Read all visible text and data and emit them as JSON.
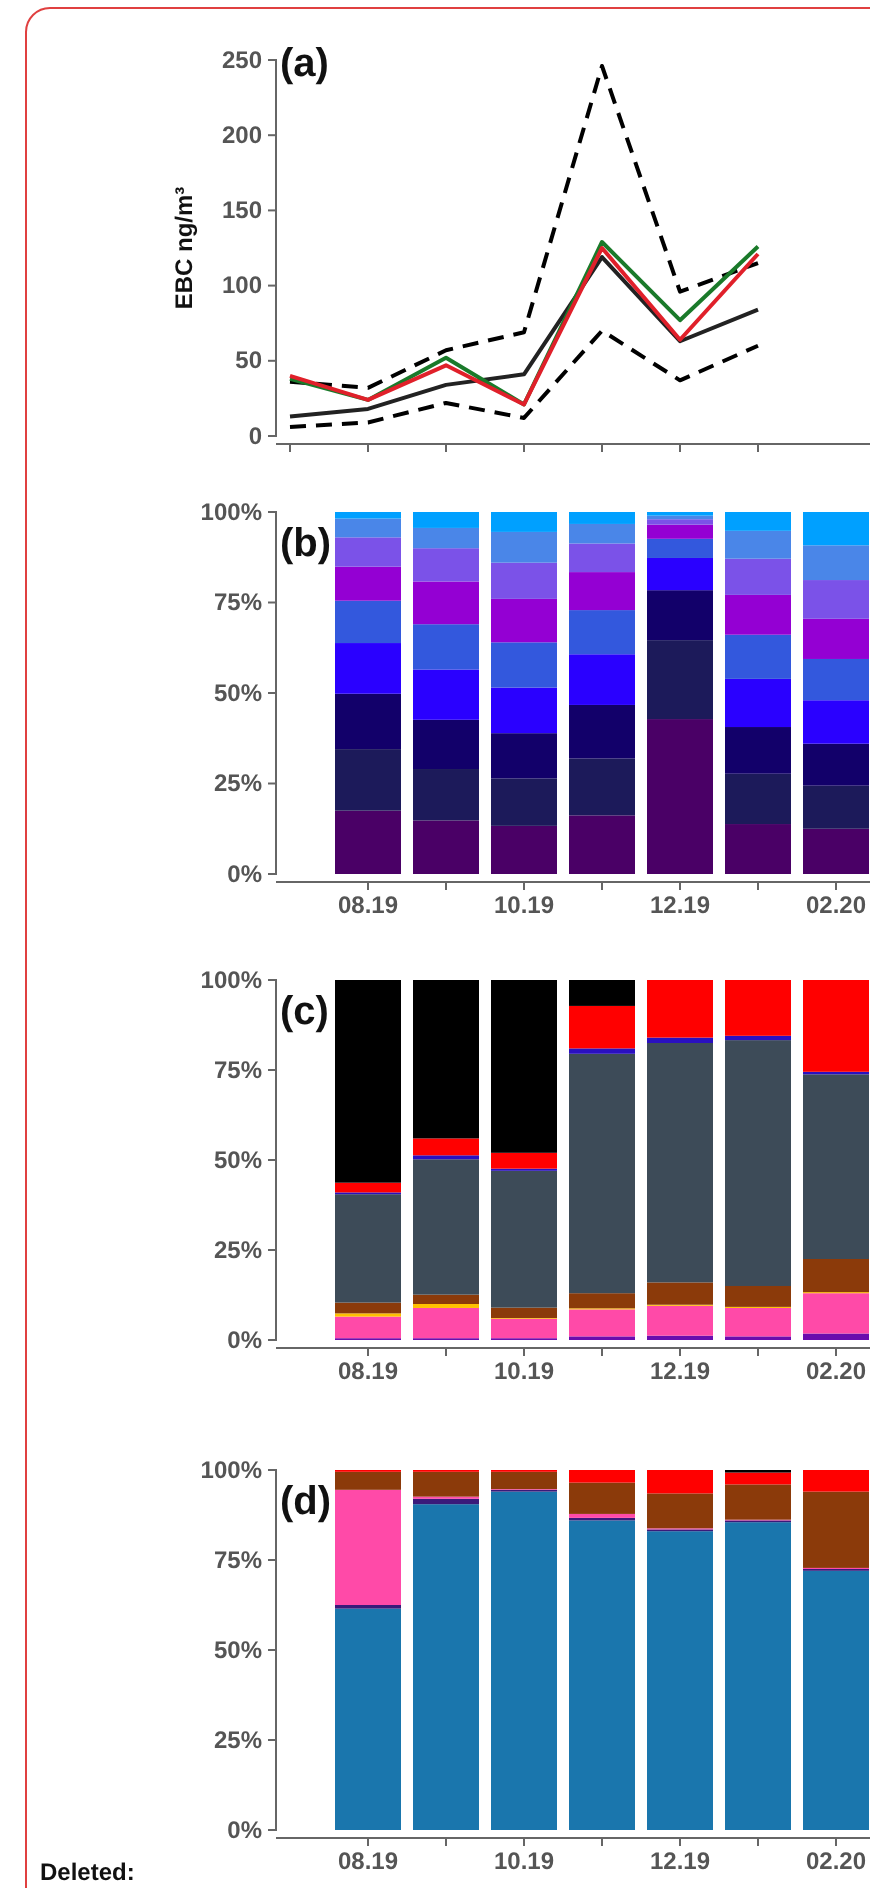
{
  "chart_data": [
    {
      "type": "line",
      "title": "(a)",
      "ylabel": "EBC ng/m³",
      "categories": [
        null,
        null,
        null,
        null,
        null,
        null,
        null
      ],
      "ylim": [
        0,
        250
      ],
      "yticks": [
        0,
        50,
        100,
        150,
        200,
        250
      ],
      "series": [
        {
          "color": "#000000",
          "line_style": "dashed",
          "values": [
            36,
            32,
            57,
            69,
            246,
            96,
            115
          ]
        },
        {
          "color": "#000000",
          "line_style": "dashed",
          "values": [
            6,
            9,
            22,
            12,
            70,
            37,
            60
          ]
        },
        {
          "color": "#222222",
          "line_style": "solid",
          "values": [
            13,
            18,
            34,
            41,
            119,
            63,
            84
          ]
        },
        {
          "color": "#1a7a2a",
          "line_style": "solid",
          "values": [
            38,
            24,
            52,
            21,
            129,
            77,
            126
          ]
        },
        {
          "color": "#e0202a",
          "line_style": "solid",
          "values": [
            40,
            24,
            47,
            21,
            125,
            64,
            121
          ]
        }
      ]
    },
    {
      "type": "bar",
      "stacked": true,
      "title": "(b)",
      "categories": [
        "08.19",
        null,
        "10.19",
        null,
        "12.19",
        null,
        "02.20"
      ],
      "ylim": [
        0,
        100
      ],
      "yticks": [
        {
          "value": 0,
          "label": "0%"
        },
        {
          "value": 25,
          "label": "25%"
        },
        {
          "value": 50,
          "label": "50%"
        },
        {
          "value": 75,
          "label": "75%"
        },
        {
          "value": 100,
          "label": "100%"
        }
      ],
      "series": [
        {
          "color": "#4a0066",
          "values": [
            17.5,
            14.8,
            13.3,
            16.2,
            42.8,
            13.8,
            12.5
          ]
        },
        {
          "color": "#1c1a5a",
          "values": [
            17,
            14.2,
            13.1,
            15.7,
            21.8,
            13.9,
            11.9
          ]
        },
        {
          "color": "#12006a",
          "values": [
            15.3,
            13.6,
            12.5,
            14.8,
            13.8,
            12.9,
            11.6
          ]
        },
        {
          "color": "#2a00ff",
          "values": [
            14,
            13.9,
            12.6,
            14,
            8.9,
            13.3,
            12
          ]
        },
        {
          "color": "#3358dd",
          "values": [
            11.7,
            12.5,
            12.5,
            12.2,
            5.3,
            12.2,
            11.4
          ]
        },
        {
          "color": "#9400d3",
          "values": [
            9.4,
            11.8,
            12,
            10.5,
            3.9,
            11,
            11.1
          ]
        },
        {
          "color": "#7b52e8",
          "values": [
            8.1,
            9.2,
            10,
            7.9,
            1.5,
            10,
            10.7
          ]
        },
        {
          "color": "#4a86e8",
          "values": [
            5.2,
            5.6,
            8.5,
            5.4,
            1,
            7.7,
            9.6
          ]
        },
        {
          "color": "#00a0ff",
          "values": [
            1.8,
            4.4,
            5.5,
            3.3,
            1,
            5.2,
            9.2
          ]
        }
      ]
    },
    {
      "type": "bar",
      "stacked": true,
      "title": "(c)",
      "categories": [
        "08.19",
        null,
        "10.19",
        null,
        "12.19",
        null,
        "02.20"
      ],
      "ylim": [
        0,
        100
      ],
      "yticks": [
        {
          "value": 0,
          "label": "0%"
        },
        {
          "value": 25,
          "label": "25%"
        },
        {
          "value": 50,
          "label": "50%"
        },
        {
          "value": 75,
          "label": "75%"
        },
        {
          "value": 100,
          "label": "100%"
        }
      ],
      "series": [
        {
          "color": "#6a0dad",
          "values": [
            0.5,
            0.5,
            0.5,
            1,
            1.2,
            1,
            1.8
          ]
        },
        {
          "color": "#ff4aa8",
          "values": [
            6,
            8.4,
            5.4,
            7.5,
            8.3,
            7.9,
            11.2
          ]
        },
        {
          "color": "#ffc000",
          "values": [
            0.9,
            1.1,
            0.2,
            0.3,
            0.3,
            0.3,
            0.3
          ]
        },
        {
          "color": "#8b3a0a",
          "values": [
            3,
            2.6,
            2.9,
            4.2,
            6.2,
            5.8,
            9.2
          ]
        },
        {
          "color": "#3d4b58",
          "values": [
            30.1,
            37.6,
            38,
            66.5,
            66.5,
            68.3,
            51.3
          ]
        },
        {
          "color": "#2a10c0",
          "values": [
            0.5,
            1.1,
            0.6,
            1.5,
            1.5,
            1.2,
            0.7
          ]
        },
        {
          "color": "#ff0000",
          "values": [
            2.7,
            4.7,
            4.4,
            11.8,
            16,
            15.5,
            25.5
          ]
        },
        {
          "color": "#000000",
          "values": [
            56.3,
            44,
            48,
            7.2,
            0,
            0,
            0
          ]
        }
      ]
    },
    {
      "type": "bar",
      "stacked": true,
      "title": "(d)",
      "categories": [
        "08.19",
        null,
        "10.19",
        null,
        "12.19",
        null,
        "02.20"
      ],
      "ylim": [
        0,
        100
      ],
      "yticks": [
        {
          "value": 0,
          "label": "0%"
        },
        {
          "value": 25,
          "label": "25%"
        },
        {
          "value": 50,
          "label": "50%"
        },
        {
          "value": 75,
          "label": "75%"
        },
        {
          "value": 100,
          "label": "100%"
        }
      ],
      "annotations": [
        "Deleted:"
      ],
      "series": [
        {
          "color": "#1a76ad",
          "values": [
            61.5,
            90.5,
            94,
            86,
            83,
            85.5,
            72
          ]
        },
        {
          "color": "#3a1a7a",
          "values": [
            1,
            1.5,
            0.5,
            0.7,
            0.5,
            0.5,
            0.5
          ]
        },
        {
          "color": "#ff4aa8",
          "values": [
            32,
            0.6,
            0.2,
            1.1,
            0.3,
            0.2,
            0.3
          ]
        },
        {
          "color": "#8b3a0a",
          "values": [
            5,
            6.9,
            4.8,
            8.7,
            9.7,
            9.8,
            21.2
          ]
        },
        {
          "color": "#ff0000",
          "values": [
            0.5,
            0.5,
            0.5,
            3.5,
            6.5,
            3.3,
            6
          ]
        },
        {
          "color": "#000000",
          "values": [
            0,
            0,
            0,
            0,
            0,
            0.7,
            0
          ]
        }
      ]
    }
  ]
}
